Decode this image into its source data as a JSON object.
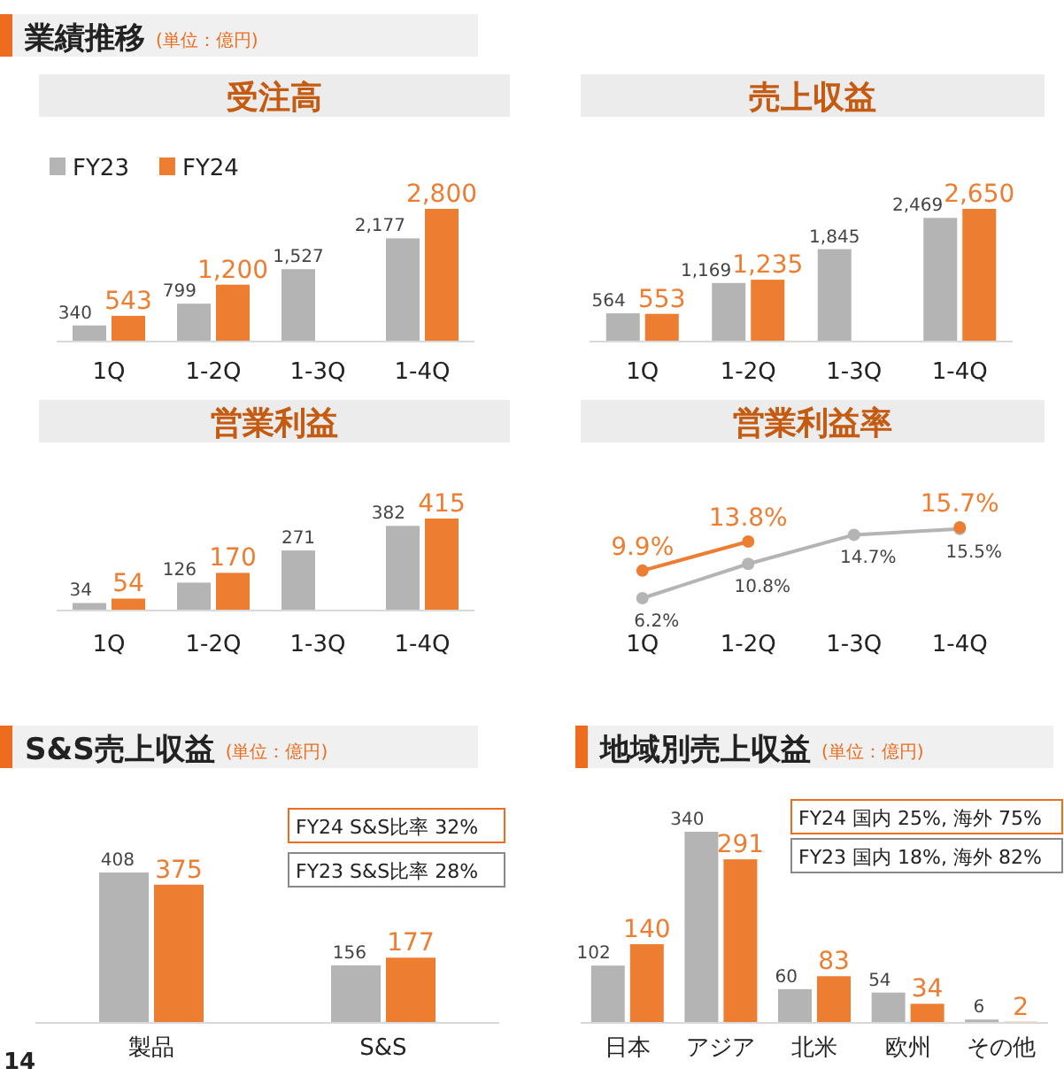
{
  "chart_data": [
    {
      "type": "other",
      "title": "業績推移",
      "subtitle": "(単位：億円)",
      "annotations": [
        "14"
      ]
    },
    {
      "type": "bar",
      "title": "受注高",
      "categories": [
        "1Q",
        "1-2Q",
        "1-3Q",
        "1-4Q"
      ],
      "legend": "top left",
      "series": [
        {
          "name": "FY23",
          "color": "#b4b4b4",
          "values": [
            340,
            799,
            1527,
            2177
          ],
          "value_labels": [
            "340",
            "799",
            "1,527",
            "2,177"
          ]
        },
        {
          "name": "FY24",
          "color": "#ed7d31",
          "values": [
            543,
            1200,
            null,
            2800
          ],
          "value_labels": [
            "543",
            "1,200",
            null,
            "2,800"
          ]
        }
      ]
    },
    {
      "type": "bar",
      "title": "売上収益",
      "categories": [
        "1Q",
        "1-2Q",
        "1-3Q",
        "1-4Q"
      ],
      "series": [
        {
          "color": "#b4b4b4",
          "values": [
            564,
            1169,
            1845,
            2469
          ],
          "value_labels": [
            "564",
            "1,169",
            "1,845",
            "2,469"
          ]
        },
        {
          "color": "#ed7d31",
          "values": [
            553,
            1235,
            null,
            2650
          ],
          "value_labels": [
            "553",
            "1,235",
            null,
            "2,650"
          ]
        }
      ]
    },
    {
      "type": "bar",
      "title": "営業利益",
      "categories": [
        "1Q",
        "1-2Q",
        "1-3Q",
        "1-4Q"
      ],
      "series": [
        {
          "color": "#b4b4b4",
          "values": [
            34,
            126,
            271,
            382
          ],
          "value_labels": [
            "34",
            "126",
            "271",
            "382"
          ]
        },
        {
          "color": "#ed7d31",
          "values": [
            54,
            170,
            null,
            415
          ],
          "value_labels": [
            "54",
            "170",
            null,
            "415"
          ]
        }
      ]
    },
    {
      "type": "line",
      "title": "営業利益率",
      "categories": [
        "1Q",
        "1-2Q",
        "1-3Q",
        "1-4Q"
      ],
      "marker": "circle",
      "series": [
        {
          "color": "#b4b4b4",
          "values": [
            6.2,
            10.8,
            14.7,
            15.5
          ],
          "value_labels": [
            "6.2%",
            "10.8%",
            "14.7%",
            "15.5%"
          ]
        },
        {
          "color": "#ed7d31",
          "values": [
            9.9,
            13.8,
            null,
            15.7
          ],
          "value_labels": [
            "9.9%",
            "13.8%",
            null,
            "15.7%"
          ]
        }
      ]
    },
    {
      "type": "bar",
      "title": "S&S売上収益",
      "subtitle": "(単位：億円)",
      "categories": [
        "製品",
        "S&S"
      ],
      "annotations": [
        "FY24 S&S比率 32%",
        "FY23 S&S比率 28%"
      ],
      "series": [
        {
          "color": "#b4b4b4",
          "values": [
            408,
            156
          ],
          "value_labels": [
            "408",
            "156"
          ]
        },
        {
          "color": "#ed7d31",
          "values": [
            375,
            177
          ],
          "value_labels": [
            "375",
            "177"
          ]
        }
      ]
    },
    {
      "type": "bar",
      "title": "地域別売上収益",
      "subtitle": "(単位：億円)",
      "categories": [
        "日本",
        "アジア",
        "北米",
        "欧州",
        "その他"
      ],
      "annotations": [
        "FY24 国内 25%, 海外 75%",
        "FY23 国内 18%, 海外 82%"
      ],
      "series": [
        {
          "color": "#b4b4b4",
          "values": [
            102,
            340,
            60,
            54,
            6
          ],
          "value_labels": [
            "102",
            "340",
            "60",
            "54",
            "6"
          ]
        },
        {
          "color": "#ed7d31",
          "values": [
            140,
            291,
            83,
            34,
            2
          ],
          "value_labels": [
            "140",
            "291",
            "83",
            "34",
            "2"
          ]
        }
      ]
    }
  ]
}
